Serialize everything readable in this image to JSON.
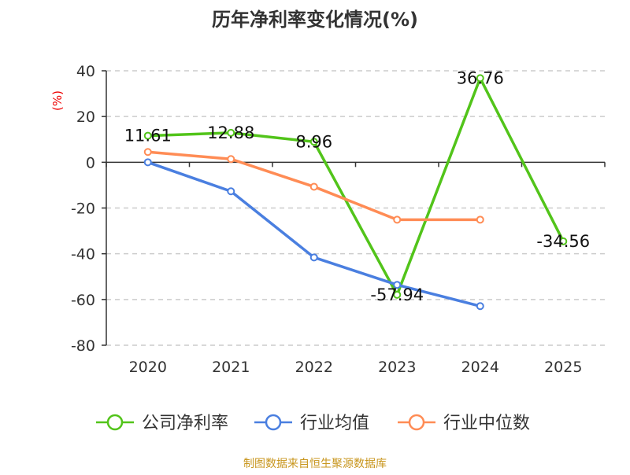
{
  "chart_data": {
    "type": "line",
    "title": "历年净利率变化情况(%)",
    "ylabel": "(%)",
    "categories": [
      "2020",
      "2021",
      "2022",
      "2023",
      "2024",
      "2025"
    ],
    "ylim": [
      -80,
      40
    ],
    "yticks": [
      40,
      20,
      0,
      -20,
      -40,
      -60,
      -80
    ],
    "grid": true,
    "legend_position": "bottom",
    "series": [
      {
        "name": "公司净利率",
        "color": "#52c41a",
        "values": [
          11.61,
          12.88,
          8.96,
          -57.94,
          36.76,
          -34.56
        ],
        "labels": [
          "11.61",
          "12.88",
          "8.96",
          "-57.94",
          "36.76",
          "-34.56"
        ]
      },
      {
        "name": "行业均值",
        "color": "#4a7fe0",
        "values": [
          0,
          -12.7,
          -41.6,
          -53.6,
          -62.9,
          null
        ]
      },
      {
        "name": "行业中位数",
        "color": "#ff8c55",
        "values": [
          4.5,
          1.4,
          -10.7,
          -25.1,
          -25.1,
          null
        ]
      }
    ]
  },
  "footer": "制图数据来自恒生聚源数据库"
}
